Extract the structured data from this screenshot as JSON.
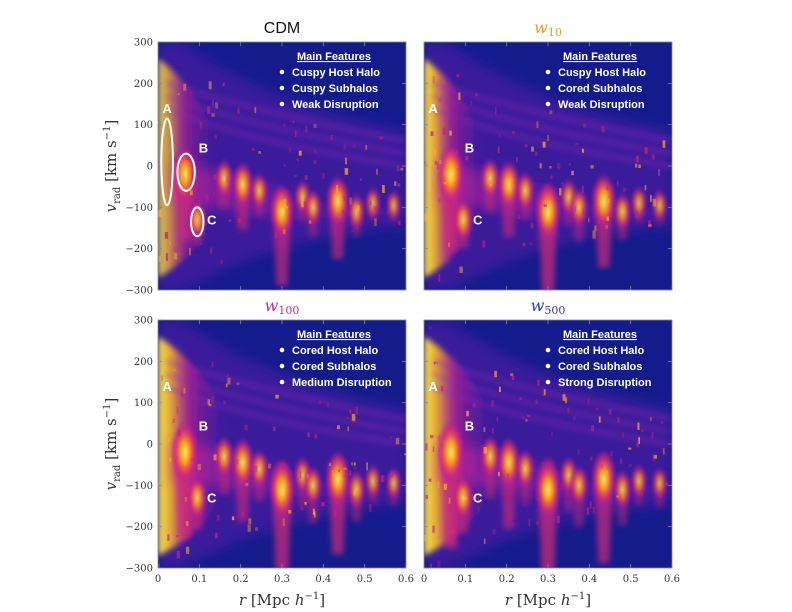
{
  "chart_data": {
    "type": "heatmap",
    "layout": "2x2",
    "xlabel": "r [Mpc h^-1]",
    "ylabel": "v_rad [km s^-1]",
    "xlim": [
      0,
      0.6
    ],
    "ylim": [
      -300,
      300
    ],
    "xticks": [
      0,
      0.1,
      0.2,
      0.3,
      0.4,
      0.5,
      0.6
    ],
    "xticklabels": [
      "0",
      "0.1",
      "0.2",
      "0.3",
      "0.4",
      "0.5",
      "0.6"
    ],
    "yticks": [
      -300,
      -200,
      -100,
      0,
      100,
      200,
      300
    ],
    "yticklabels": [
      "−300",
      "−200",
      "−100",
      "0",
      "100",
      "200",
      "300"
    ],
    "features_heading": "Main Features",
    "colors": {
      "background": "#141c8c",
      "cdm": "#111111",
      "w10": "#f0962a",
      "w100": "#b8309a",
      "w500": "#2a3ab0"
    },
    "panels": [
      {
        "title": "CDM",
        "title_style": "plain",
        "color_key": "cdm",
        "features": [
          "Cuspy Host Halo",
          "Cuspy Subhalos",
          "Weak Disruption"
        ],
        "ellipses": true
      },
      {
        "title": "w10",
        "title_style": "math",
        "title_base": "w",
        "title_sub": "10",
        "color_key": "w10",
        "features": [
          "Cuspy Host Halo",
          "Cored Subhalos",
          "Weak Disruption"
        ],
        "ellipses": false
      },
      {
        "title": "w100",
        "title_style": "math",
        "title_base": "w",
        "title_sub": "100",
        "color_key": "w100",
        "features": [
          "Cored Host Halo",
          "Cored Subhalos",
          "Medium Disruption"
        ],
        "ellipses": false
      },
      {
        "title": "w500",
        "title_style": "math",
        "title_base": "w",
        "title_sub": "500",
        "color_key": "w500",
        "features": [
          "Cored Host Halo",
          "Cored Subhalos",
          "Strong Disruption"
        ],
        "ellipses": false
      }
    ],
    "markers": [
      {
        "label": "A",
        "r": 0.022,
        "v": 140
      },
      {
        "label": "B",
        "r": 0.11,
        "v": 45
      },
      {
        "label": "C",
        "r": 0.13,
        "v": -130
      }
    ],
    "ellipse_regions": [
      {
        "r": 0.022,
        "v": 10,
        "dr": 0.014,
        "dv": 105
      },
      {
        "r": 0.068,
        "v": -15,
        "dr": 0.021,
        "dv": 45
      },
      {
        "r": 0.095,
        "v": -135,
        "dr": 0.015,
        "dv": 35
      }
    ],
    "subhalos": [
      {
        "r": 0.065,
        "v": -20,
        "amp": 1.0,
        "depth": 160
      },
      {
        "r": 0.095,
        "v": -130,
        "amp": 0.6,
        "depth": 60
      },
      {
        "r": 0.16,
        "v": -30,
        "amp": 0.55,
        "depth": 70
      },
      {
        "r": 0.205,
        "v": -45,
        "amp": 0.75,
        "depth": 110
      },
      {
        "r": 0.245,
        "v": -60,
        "amp": 0.5,
        "depth": 60
      },
      {
        "r": 0.3,
        "v": -110,
        "amp": 0.95,
        "depth": 180
      },
      {
        "r": 0.35,
        "v": -75,
        "amp": 0.45,
        "depth": 60
      },
      {
        "r": 0.375,
        "v": -100,
        "amp": 0.5,
        "depth": 70
      },
      {
        "r": 0.435,
        "v": -85,
        "amp": 0.9,
        "depth": 140
      },
      {
        "r": 0.48,
        "v": -110,
        "amp": 0.5,
        "depth": 60
      },
      {
        "r": 0.52,
        "v": -90,
        "amp": 0.4,
        "depth": 40
      },
      {
        "r": 0.57,
        "v": -95,
        "amp": 0.35,
        "depth": 40
      }
    ]
  }
}
